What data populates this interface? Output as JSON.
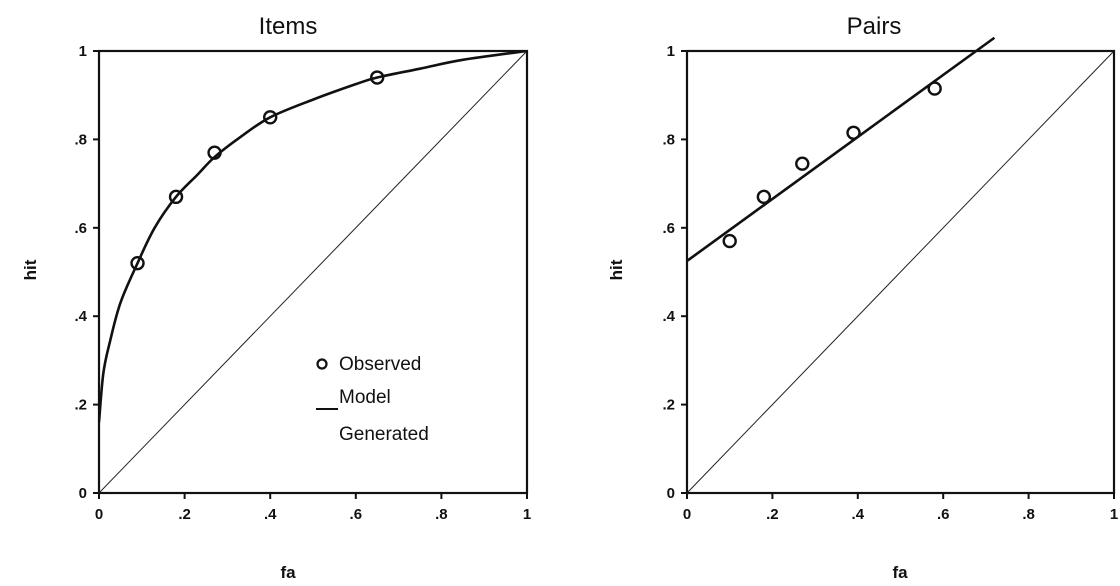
{
  "chart_data": [
    {
      "type": "line",
      "title": "Items",
      "xlabel": "fa",
      "ylabel": "hit",
      "xlim": [
        0,
        1
      ],
      "ylim": [
        0,
        1
      ],
      "xticks": [
        "0",
        ".2",
        ".4",
        ".6",
        ".8",
        "1"
      ],
      "yticks": [
        "0",
        ".2",
        ".4",
        ".6",
        ".8",
        "1"
      ],
      "grid": false,
      "chance_line": [
        [
          0,
          0
        ],
        [
          1,
          1
        ]
      ],
      "legend": {
        "position": "bottom-right",
        "entries": [
          {
            "marker": "o",
            "label": "Observed"
          },
          {
            "marker": "line",
            "label": "Model",
            "label2": "Generated"
          }
        ]
      },
      "series": [
        {
          "kind": "scatter",
          "points": [
            [
              0.09,
              0.52
            ],
            [
              0.18,
              0.67
            ],
            [
              0.27,
              0.77
            ],
            [
              0.4,
              0.85
            ],
            [
              0.65,
              0.94
            ]
          ]
        },
        {
          "kind": "curve",
          "points": [
            [
              0,
              0.16
            ],
            [
              0.01,
              0.27
            ],
            [
              0.025,
              0.34
            ],
            [
              0.05,
              0.43
            ],
            [
              0.09,
              0.52
            ],
            [
              0.13,
              0.6
            ],
            [
              0.18,
              0.67
            ],
            [
              0.23,
              0.72
            ],
            [
              0.27,
              0.76
            ],
            [
              0.33,
              0.805
            ],
            [
              0.4,
              0.85
            ],
            [
              0.5,
              0.89
            ],
            [
              0.6,
              0.925
            ],
            [
              0.65,
              0.94
            ],
            [
              0.75,
              0.96
            ],
            [
              0.85,
              0.98
            ],
            [
              1.0,
              1.0
            ]
          ]
        }
      ]
    },
    {
      "type": "line",
      "title": "Pairs",
      "xlabel": "fa",
      "ylabel": "hit",
      "xlim": [
        0,
        1
      ],
      "ylim": [
        0,
        1
      ],
      "xticks": [
        "0",
        ".2",
        ".4",
        ".6",
        ".8",
        "1"
      ],
      "yticks": [
        "0",
        ".2",
        ".4",
        ".6",
        ".8",
        "1"
      ],
      "grid": false,
      "chance_line": [
        [
          0,
          0
        ],
        [
          1,
          1
        ]
      ],
      "series": [
        {
          "kind": "scatter",
          "points": [
            [
              0.1,
              0.57
            ],
            [
              0.18,
              0.67
            ],
            [
              0.27,
              0.745
            ],
            [
              0.39,
              0.815
            ],
            [
              0.58,
              0.915
            ]
          ]
        },
        {
          "kind": "line",
          "points": [
            [
              0,
              0.525
            ],
            [
              0.72,
              1.03
            ]
          ]
        }
      ]
    }
  ]
}
